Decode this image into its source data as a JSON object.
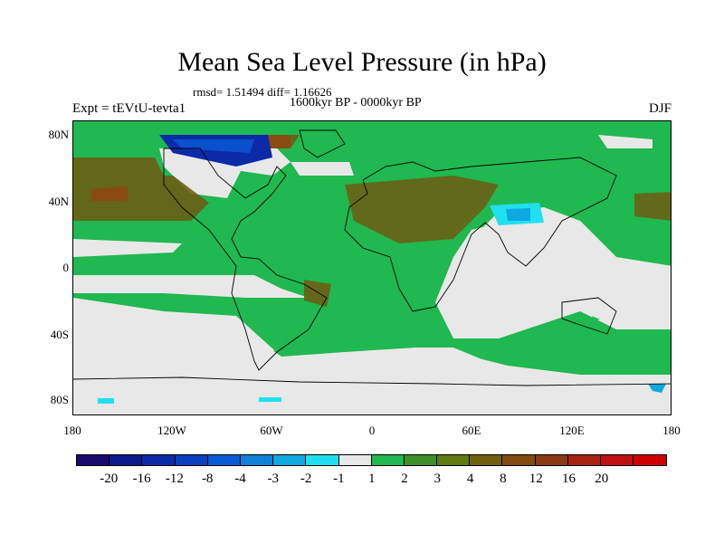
{
  "title": "Mean Sea Level Pressure (in hPa)",
  "stats": "rmsd= 1.51494 diff= 1.16626",
  "subtitle": "1600kyr BP - 0000kyr BP",
  "experiment": "Expt = tEVtU-tevta1",
  "season": "DJF",
  "y_axis_labels": [
    "80N",
    "40N",
    "0",
    "40S",
    "80S"
  ],
  "x_axis_labels": [
    "180",
    "120W",
    "60W",
    "0",
    "60E",
    "120E",
    "180"
  ],
  "colorbar": {
    "colors": [
      "#1a0a6e",
      "#0c1a8c",
      "#0a2aa8",
      "#0a3fbf",
      "#0a5ad6",
      "#1080d8",
      "#10a8e0",
      "#20e0f0",
      "#e8e8e8",
      "#20b850",
      "#3f8f28",
      "#5f7a10",
      "#6f6010",
      "#804a10",
      "#8a3a12",
      "#a82210",
      "#c01010",
      "#d00000"
    ],
    "labels": [
      "-20",
      "-16",
      "-12",
      "-8",
      "-4",
      "-3",
      "-2",
      "-1",
      "1",
      "2",
      "3",
      "4",
      "8",
      "12",
      "16",
      "20"
    ]
  },
  "colors": {
    "white": "#e8e8e8",
    "green": "#20b850",
    "dark_olive": "#6f5a10",
    "brown": "#8a4a12",
    "light_blue": "#10a8e0",
    "dark_blue": "#0a3fbf"
  }
}
